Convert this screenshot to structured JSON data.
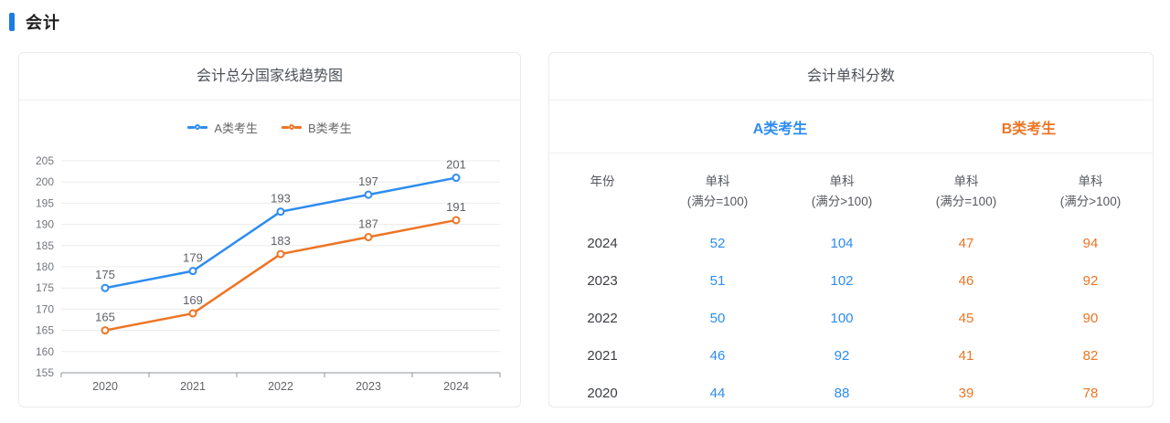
{
  "page": {
    "section_title": "会计"
  },
  "colors": {
    "accent_blue": "#2d8cf0",
    "accent_orange": "#ed7524",
    "heading_bar": "#1a7ce0",
    "grid_line": "#ececec",
    "axis_line": "#8f9399",
    "axis_label": "#73777d",
    "point_label": "#5e6166"
  },
  "trend_card": {
    "title": "会计总分国家线趋势图"
  },
  "chart_data": {
    "type": "line",
    "title": "会计总分国家线趋势图",
    "categories": [
      "2020",
      "2021",
      "2022",
      "2023",
      "2024"
    ],
    "series": [
      {
        "name": "A类考生",
        "color": "#2d8cf0",
        "values": [
          175,
          179,
          193,
          197,
          201
        ]
      },
      {
        "name": "B类考生",
        "color": "#ed7524",
        "values": [
          165,
          169,
          183,
          187,
          191
        ]
      }
    ],
    "xlabel": "",
    "ylabel": "",
    "ylim": [
      155,
      205
    ],
    "y_ticks": [
      155,
      160,
      165,
      170,
      175,
      180,
      185,
      190,
      195,
      200,
      205
    ],
    "grid": true,
    "show_point_labels": true,
    "legend_position": "top"
  },
  "score_card": {
    "title": "会计单科分数",
    "groups": [
      {
        "label": "A类考生",
        "color": "#2d8cf0"
      },
      {
        "label": "B类考生",
        "color": "#ed7524"
      }
    ],
    "columns": [
      {
        "title": "年份",
        "note": ""
      },
      {
        "title": "单科",
        "note": "(满分=100)"
      },
      {
        "title": "单科",
        "note": "(满分>100)"
      },
      {
        "title": "单科",
        "note": "(满分=100)"
      },
      {
        "title": "单科",
        "note": "(满分>100)"
      }
    ],
    "rows": [
      {
        "year": "2024",
        "values": [
          "52",
          "104",
          "47",
          "94"
        ]
      },
      {
        "year": "2023",
        "values": [
          "51",
          "102",
          "46",
          "92"
        ]
      },
      {
        "year": "2022",
        "values": [
          "50",
          "100",
          "45",
          "90"
        ]
      },
      {
        "year": "2021",
        "values": [
          "46",
          "92",
          "41",
          "82"
        ]
      },
      {
        "year": "2020",
        "values": [
          "44",
          "88",
          "39",
          "78"
        ]
      }
    ]
  }
}
